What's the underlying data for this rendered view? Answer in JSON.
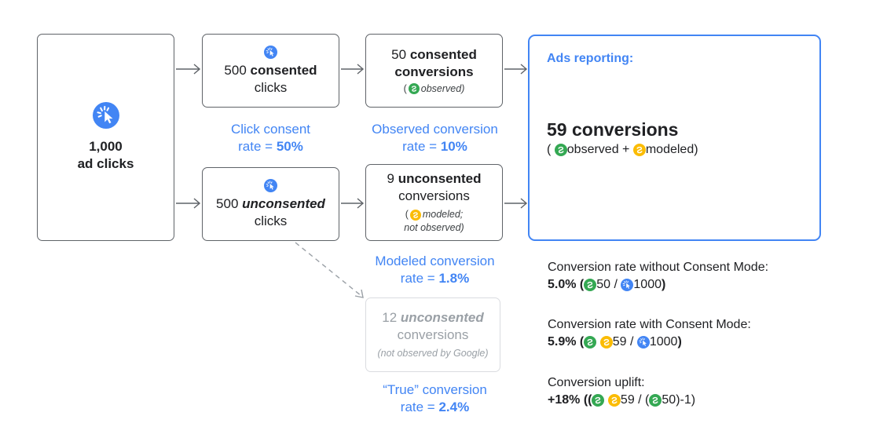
{
  "start": {
    "count": "1,000",
    "label": "ad clicks"
  },
  "consented_clicks": {
    "count": "500",
    "emph": "consented",
    "label": "clicks"
  },
  "unconsented_clicks": {
    "count": "500",
    "emph": "unconsented",
    "label": "clicks"
  },
  "click_consent_rate": {
    "line1": "Click consent",
    "line2_prefix": "rate = ",
    "value": "50%"
  },
  "consented_conversions": {
    "count": "50",
    "emph": "consented",
    "label": "conversions",
    "note_open": "(",
    "note": "observed)"
  },
  "observed_rate": {
    "line1": "Observed conversion",
    "line2_prefix": "rate = ",
    "value": "10%"
  },
  "unconsented_conversions": {
    "count": "9",
    "emph": "unconsented",
    "label": "conversions",
    "note_open": "(",
    "note1": "modeled;",
    "note2": "not observed)"
  },
  "modeled_rate": {
    "line1": "Modeled conversion",
    "line2_prefix": "rate = ",
    "value": "1.8%"
  },
  "true_conversions": {
    "count": "12",
    "emph": "unconsented",
    "label": "conversions",
    "note": "(not observed by Google)"
  },
  "true_rate": {
    "line1": "“True” conversion",
    "line2_prefix": "rate = ",
    "value": "2.4%"
  },
  "ads_reporting": {
    "title": "Ads reporting:",
    "big": "59 conversions",
    "paren_open": "(",
    "observed": "observed + ",
    "modeled": "modeled)"
  },
  "without_consent": {
    "label": "Conversion rate without Consent Mode:",
    "value": "5.0% (",
    "num": "50 / ",
    "den": "1000",
    "close": ")"
  },
  "with_consent": {
    "label": "Conversion rate with Consent Mode:",
    "value": "5.9% (",
    "num": "59 / ",
    "den": "1000",
    "close": ")"
  },
  "uplift": {
    "label": "Conversion uplift:",
    "value": "+18% ((",
    "num": "59 / (",
    "den": "50)-1)"
  },
  "colors": {
    "blue": "#4285f4",
    "green": "#34a853",
    "yellow": "#fbbc04",
    "border": "#5f6368",
    "muted": "#dadce0"
  },
  "icons": [
    "click-icon",
    "observed-icon",
    "modeled-icon"
  ]
}
